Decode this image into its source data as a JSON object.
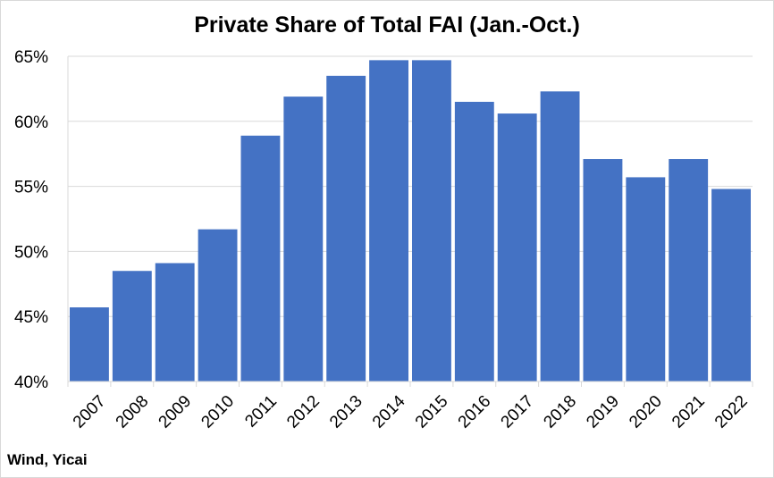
{
  "chart_data": {
    "type": "bar",
    "title": "Private Share of Total FAI (Jan.-Oct.)",
    "xlabel": "",
    "ylabel": "",
    "categories": [
      "2007",
      "2008",
      "2009",
      "2010",
      "2011",
      "2012",
      "2013",
      "2014",
      "2015",
      "2016",
      "2017",
      "2018",
      "2019",
      "2020",
      "2021",
      "2022"
    ],
    "values": [
      45.7,
      48.5,
      49.1,
      51.7,
      58.9,
      61.9,
      63.5,
      64.7,
      64.7,
      61.5,
      60.6,
      62.3,
      57.1,
      55.7,
      57.1,
      54.8
    ],
    "ylim": [
      40,
      65
    ],
    "yticks": [
      40,
      45,
      50,
      55,
      60,
      65
    ],
    "ytick_labels": [
      "40%",
      "45%",
      "50%",
      "55%",
      "60%",
      "65%"
    ],
    "bar_color": "#4472c4",
    "grid": true,
    "legend": false
  },
  "source": "Wind, Yicai"
}
